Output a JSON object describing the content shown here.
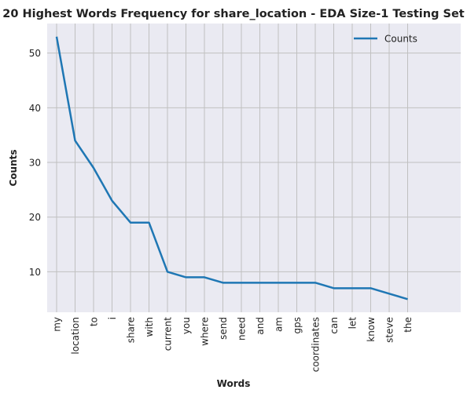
{
  "chart_data": {
    "type": "line",
    "title": "20 Highest Words Frequency for share_location - EDA Size-1 Testing Set",
    "xlabel": "Words",
    "ylabel": "Counts",
    "categories": [
      "my",
      "location",
      "to",
      "i",
      "share",
      "with",
      "current",
      "you",
      "where",
      "send",
      "need",
      "and",
      "am",
      "gps",
      "coordinates",
      "can",
      "let",
      "know",
      "steve",
      "the"
    ],
    "series": [
      {
        "name": "Counts",
        "values": [
          53,
          34,
          29,
          23,
          19,
          19,
          10,
          9,
          9,
          8,
          8,
          8,
          8,
          8,
          8,
          7,
          7,
          7,
          6,
          5
        ]
      }
    ],
    "ylim": [
      2.6,
      55.4
    ],
    "yticks": [
      10,
      20,
      30,
      40,
      50
    ],
    "grid": true,
    "legend_position": "top-right",
    "colors": {
      "line": "#1f77b4",
      "background": "#eaeaf2",
      "grid": "#c0c0c0"
    }
  }
}
